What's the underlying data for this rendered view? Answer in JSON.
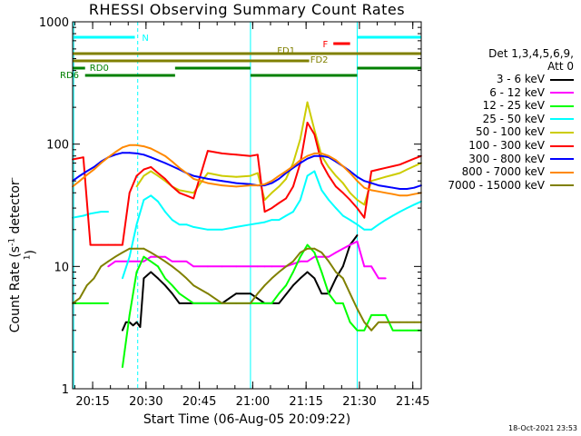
{
  "chart_data": {
    "type": "line",
    "title": "RHESSI Observing Summary Count Rates",
    "xlabel": "Start Time (06-Aug-05 20:09:22)",
    "ylabel_prefix": "Count Rate (s",
    "ylabel_sup": "-1",
    "ylabel_mid": " detector",
    "ylabel_end": ")",
    "ylog": true,
    "ylim": [
      1,
      1000
    ],
    "xlim_minutes": [
      0,
      98
    ],
    "x_tick_labels": [
      "20:15",
      "20:30",
      "20:45",
      "21:00",
      "21:15",
      "21:30",
      "21:45"
    ],
    "x_tick_minutes": [
      5.63,
      20.63,
      35.63,
      50.63,
      65.63,
      80.63,
      95.63
    ],
    "y_tick_labels": [
      "1",
      "10",
      "100",
      "1000"
    ],
    "y_tick_values": [
      1,
      10,
      100,
      1000
    ],
    "legend_header": [
      "Det 1,3,4,5,6,9,",
      "Att 0"
    ],
    "series": [
      {
        "name": "3 - 6 keV",
        "color": "#000000",
        "x": [
          0,
          3,
          5,
          8,
          12,
          13,
          14,
          15,
          16,
          17,
          18,
          19,
          20,
          22,
          24,
          26,
          28,
          30,
          35,
          38,
          42,
          46,
          50,
          54,
          56,
          58,
          62,
          64,
          66,
          68,
          70,
          72,
          74,
          76,
          78,
          80,
          82,
          84,
          86,
          88,
          90,
          92,
          94,
          96,
          98
        ],
        "y": [
          null,
          null,
          null,
          null,
          null,
          null,
          3,
          3.5,
          3.5,
          3.3,
          3.5,
          3.2,
          8,
          9,
          8,
          7,
          6,
          5,
          5,
          5,
          5,
          6,
          6,
          5,
          5,
          5,
          7,
          8,
          9,
          8,
          6,
          6,
          8,
          10,
          15,
          18,
          null,
          null,
          null,
          null,
          null,
          null,
          null,
          null,
          null
        ]
      },
      {
        "name": "6 - 12 keV",
        "color": "#ff00ff",
        "x": [
          0,
          3,
          5,
          8,
          10,
          12,
          14,
          16,
          18,
          20,
          22,
          24,
          26,
          28,
          30,
          32,
          34,
          38,
          42,
          46,
          50,
          52,
          54,
          56,
          60,
          64,
          66,
          68,
          70,
          72,
          74,
          76,
          78,
          80,
          82,
          84,
          86,
          88,
          90,
          92,
          94,
          96,
          98
        ],
        "y": [
          null,
          null,
          null,
          null,
          10,
          11,
          11,
          11,
          11,
          11,
          12,
          12,
          12,
          11,
          11,
          11,
          10,
          10,
          10,
          10,
          10,
          10,
          10,
          10,
          10,
          11,
          11,
          12,
          12,
          12,
          13,
          14,
          15,
          16,
          10,
          10,
          8,
          8,
          null,
          null,
          null,
          null,
          null
        ],
        "segments_start": 8.5,
        "segments_end": 90
      },
      {
        "name": "12 - 25 keV",
        "color": "#00ff00",
        "x": [
          0,
          3,
          5,
          8,
          10,
          12,
          14,
          16,
          18,
          20,
          22,
          24,
          26,
          28,
          30,
          34,
          38,
          42,
          46,
          50,
          54,
          56,
          58,
          60,
          62,
          64,
          66,
          68,
          70,
          72,
          74,
          76,
          78,
          80,
          82,
          84,
          86,
          88,
          90,
          92,
          94,
          96,
          98
        ],
        "y": [
          5,
          5,
          5,
          5,
          5,
          null,
          1.5,
          4,
          9,
          12,
          11,
          10,
          8,
          7,
          6,
          5,
          5,
          5,
          5,
          5,
          5,
          5,
          6,
          7,
          9,
          12,
          15,
          13,
          9,
          6,
          5,
          5,
          3.5,
          3,
          3,
          4,
          4,
          4,
          3,
          3,
          3,
          3,
          3
        ],
        "note": "dips toward 1-2 near 20:25-20:27"
      },
      {
        "name": "25 - 50 keV",
        "color": "#00ffff",
        "x": [
          0,
          3,
          5,
          8,
          10,
          12,
          14,
          16,
          18,
          20,
          22,
          24,
          26,
          28,
          30,
          32,
          34,
          38,
          42,
          46,
          50,
          54,
          56,
          58,
          60,
          62,
          64,
          66,
          68,
          70,
          72,
          74,
          76,
          78,
          80,
          82,
          84,
          86,
          88,
          90,
          92,
          94,
          96,
          98
        ],
        "y": [
          25,
          26,
          27,
          28,
          28,
          null,
          8,
          12,
          22,
          35,
          38,
          34,
          28,
          24,
          22,
          22,
          21,
          20,
          20,
          21,
          22,
          23,
          24,
          24,
          26,
          28,
          35,
          55,
          60,
          42,
          35,
          30,
          26,
          24,
          22,
          20,
          20,
          22,
          24,
          26,
          28,
          30,
          32,
          34
        ]
      },
      {
        "name": "50 - 100 keV",
        "color": "#cccc00",
        "x": [
          0,
          3,
          5,
          8,
          10,
          12,
          14,
          16,
          18,
          20,
          22,
          24,
          26,
          28,
          30,
          34,
          38,
          42,
          46,
          50,
          52,
          54,
          56,
          58,
          60,
          62,
          64,
          66,
          68,
          70,
          72,
          74,
          76,
          78,
          80,
          82,
          84,
          86,
          88,
          90,
          92,
          94,
          96,
          98
        ],
        "y": [
          null,
          null,
          null,
          null,
          null,
          null,
          null,
          null,
          45,
          55,
          60,
          55,
          50,
          45,
          42,
          40,
          58,
          55,
          54,
          55,
          58,
          35,
          40,
          45,
          52,
          70,
          110,
          220,
          130,
          80,
          65,
          55,
          48,
          40,
          35,
          32,
          50,
          52,
          54,
          56,
          58,
          62,
          66,
          70
        ]
      },
      {
        "name": "100 - 300 keV",
        "color": "#ff0000",
        "x": [
          0,
          3,
          5,
          8,
          10,
          12,
          14,
          16,
          18,
          20,
          22,
          24,
          26,
          28,
          30,
          32,
          34,
          38,
          42,
          46,
          50,
          52,
          54,
          56,
          58,
          60,
          62,
          64,
          66,
          68,
          70,
          72,
          74,
          76,
          78,
          80,
          82,
          84,
          86,
          88,
          90,
          92,
          94,
          96,
          98
        ],
        "y": [
          75,
          78,
          15,
          15,
          15,
          15,
          15,
          40,
          55,
          62,
          65,
          58,
          52,
          45,
          40,
          38,
          36,
          88,
          84,
          82,
          80,
          82,
          28,
          30,
          33,
          36,
          45,
          70,
          150,
          120,
          70,
          55,
          45,
          40,
          35,
          30,
          25,
          60,
          62,
          64,
          66,
          68,
          72,
          76,
          80
        ]
      },
      {
        "name": "300 - 800 keV",
        "color": "#0000ff",
        "x": [
          0,
          2,
          4,
          6,
          8,
          10,
          12,
          14,
          16,
          18,
          20,
          22,
          24,
          26,
          28,
          30,
          32,
          34,
          38,
          42,
          46,
          50,
          52,
          54,
          56,
          58,
          60,
          62,
          64,
          66,
          68,
          70,
          72,
          74,
          76,
          78,
          80,
          82,
          84,
          86,
          88,
          90,
          92,
          94,
          96,
          98
        ],
        "y": [
          50,
          55,
          60,
          65,
          72,
          78,
          82,
          85,
          85,
          84,
          82,
          78,
          74,
          70,
          66,
          62,
          58,
          55,
          52,
          50,
          48,
          47,
          46,
          46,
          48,
          52,
          58,
          64,
          70,
          76,
          80,
          80,
          78,
          72,
          66,
          60,
          54,
          50,
          48,
          46,
          45,
          44,
          43,
          43,
          44,
          46
        ]
      },
      {
        "name": "800 - 7000 keV",
        "color": "#ff8800",
        "x": [
          0,
          2,
          4,
          6,
          8,
          10,
          12,
          14,
          16,
          18,
          20,
          22,
          24,
          26,
          28,
          30,
          32,
          34,
          38,
          42,
          46,
          50,
          52,
          54,
          56,
          58,
          60,
          62,
          64,
          66,
          68,
          70,
          72,
          74,
          76,
          78,
          80,
          82,
          84,
          86,
          88,
          90,
          92,
          94,
          96,
          98
        ],
        "y": [
          45,
          50,
          56,
          62,
          70,
          78,
          86,
          94,
          98,
          98,
          96,
          92,
          86,
          80,
          72,
          64,
          58,
          52,
          48,
          46,
          45,
          46,
          46,
          47,
          50,
          55,
          60,
          66,
          74,
          80,
          84,
          84,
          80,
          74,
          66,
          58,
          50,
          44,
          42,
          41,
          40,
          39,
          38,
          38,
          39,
          40
        ]
      },
      {
        "name": "7000 - 15000 keV",
        "color": "#808000",
        "x": [
          0,
          2,
          4,
          6,
          8,
          10,
          12,
          14,
          16,
          18,
          20,
          22,
          24,
          26,
          28,
          30,
          32,
          34,
          38,
          42,
          46,
          50,
          52,
          54,
          56,
          58,
          60,
          62,
          64,
          66,
          68,
          70,
          72,
          74,
          76,
          78,
          80,
          82,
          84,
          86,
          88,
          90,
          92,
          94,
          96,
          98
        ],
        "y": [
          5,
          5.5,
          7,
          8,
          10,
          11,
          12,
          13,
          14,
          14,
          14,
          13,
          12,
          11,
          10,
          9,
          8,
          7,
          6,
          5,
          5,
          5,
          6,
          7,
          8,
          9,
          10,
          11,
          13,
          14,
          14,
          13,
          11,
          9,
          8,
          6,
          4.5,
          3.5,
          3,
          3.5,
          3.5,
          3.5,
          3.5,
          3.5,
          3.5,
          3.5
        ]
      }
    ],
    "vertical_lines_minutes": [
      {
        "x": 0.3,
        "color": "#00ffff",
        "style": "solid"
      },
      {
        "x": 18.3,
        "color": "#00ffff",
        "style": "dashed"
      },
      {
        "x": 50.0,
        "color": "#00ffff",
        "style": "solid"
      },
      {
        "x": 80.0,
        "color": "#00ffff",
        "style": "solid"
      },
      {
        "x": 98.0,
        "color": "#00ffff",
        "style": "dashed"
      }
    ],
    "state_bars": [
      {
        "label": "N",
        "color": "#00ffff",
        "level": 1,
        "intervals": [
          [
            0.3,
            17.5
          ],
          [
            80.0,
            98.0
          ]
        ]
      },
      {
        "label": "F",
        "color": "#ff0000",
        "level": 2,
        "intervals": [
          [
            73.3,
            78.0
          ]
        ]
      },
      {
        "label": "FD1",
        "color": "#808000",
        "level": 3,
        "intervals": [
          [
            0,
            98
          ]
        ]
      },
      {
        "label": "FD2",
        "color": "#808000",
        "level": 4,
        "intervals": [
          [
            0,
            66.5
          ]
        ]
      },
      {
        "label": "RD0",
        "color": "#008000",
        "level": 5,
        "intervals": [
          [
            0,
            3.5
          ],
          [
            28.8,
            50.0
          ],
          [
            80.0,
            98.0
          ]
        ]
      },
      {
        "label": "RD6",
        "color": "#008000",
        "level": 6,
        "intervals": [
          [
            3.5,
            28.8
          ],
          [
            50.0,
            80.0
          ]
        ]
      }
    ]
  },
  "timestamp": "18-Oct-2021 23:53"
}
